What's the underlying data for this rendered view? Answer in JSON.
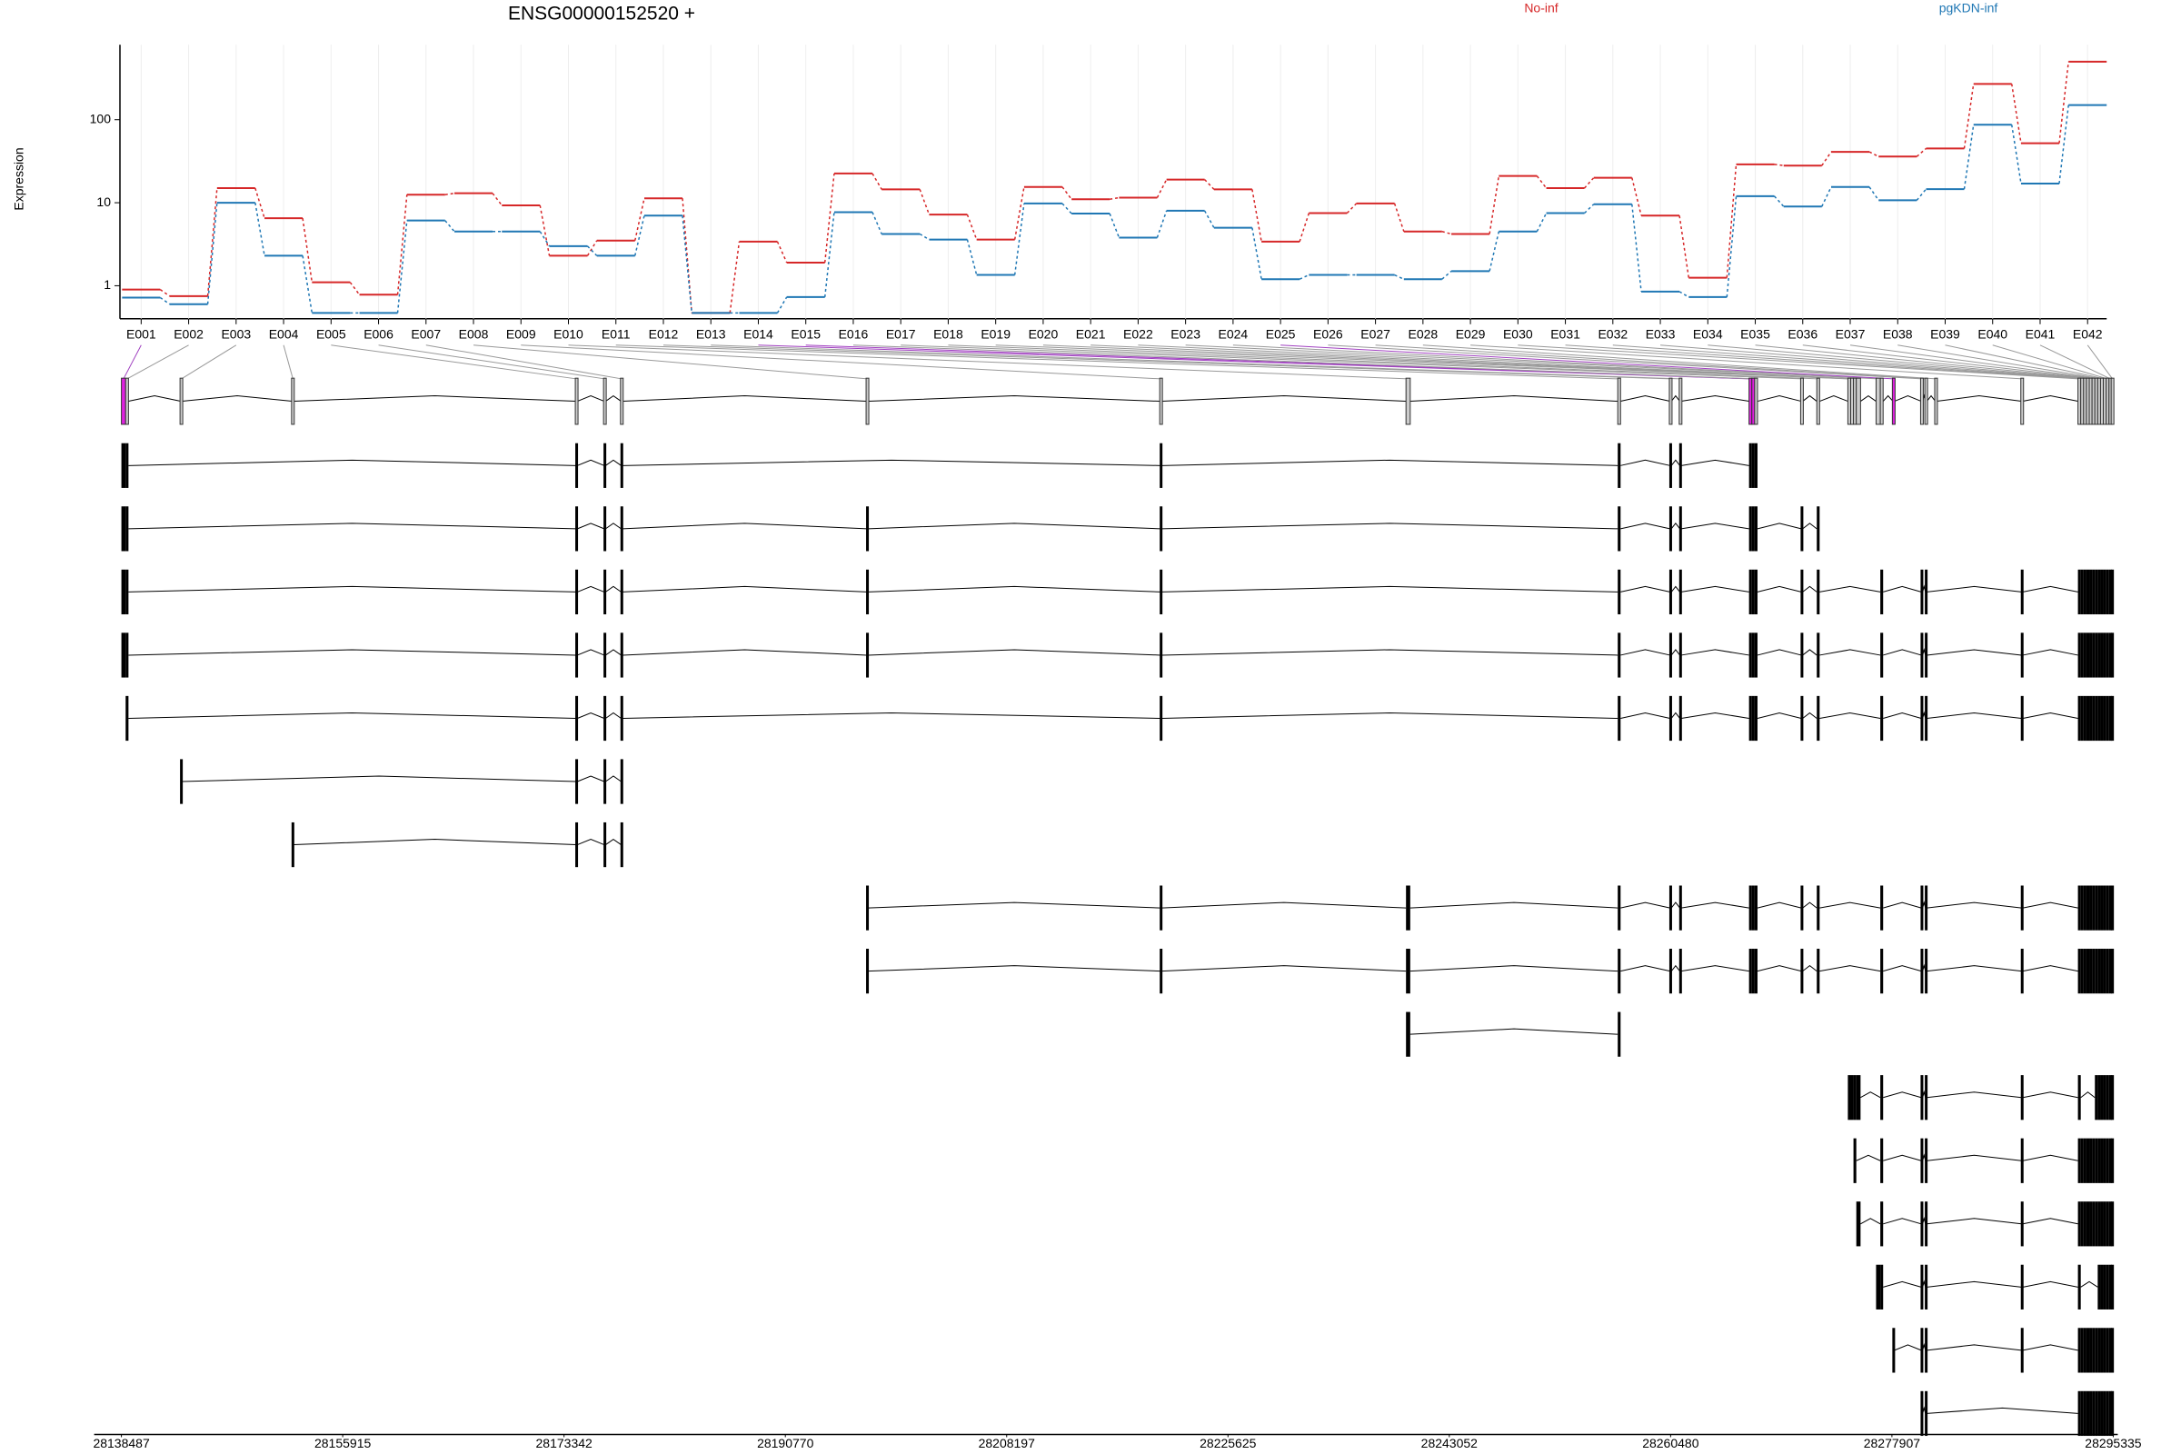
{
  "chart_data": [
    {
      "type": "line",
      "title": "ENSG00000152520 +",
      "y_label": "Expression",
      "log_y": true,
      "ylim": [
        0.4,
        800
      ],
      "yticks": [
        1,
        10,
        100
      ],
      "grid": true,
      "categories": [
        "E001",
        "E002",
        "E003",
        "E004",
        "E005",
        "E006",
        "E007",
        "E008",
        "E009",
        "E010",
        "E011",
        "E012",
        "E013",
        "E014",
        "E015",
        "E016",
        "E017",
        "E018",
        "E019",
        "E020",
        "E021",
        "E022",
        "E023",
        "E024",
        "E025",
        "E026",
        "E027",
        "E028",
        "E029",
        "E030",
        "E031",
        "E032",
        "E033",
        "E034",
        "E035",
        "E036",
        "E037",
        "E038",
        "E039",
        "E040",
        "E041",
        "E042"
      ],
      "series": [
        {
          "name": "No-inf",
          "color": "#d62728",
          "values": [
            0.9,
            0.75,
            15,
            6.5,
            1.1,
            0.78,
            12.5,
            13,
            9.3,
            2.3,
            3.5,
            11.3,
            0.47,
            3.4,
            1.9,
            22.5,
            14.5,
            7.2,
            3.6,
            15.5,
            11,
            11.5,
            19,
            14.5,
            3.4,
            7.5,
            9.8,
            4.5,
            4.2,
            21,
            15,
            20,
            7,
            1.25,
            29,
            28,
            41,
            36,
            45,
            270,
            52,
            500
          ]
        },
        {
          "name": "pgKDN-inf",
          "color": "#1f77b4",
          "values": [
            0.72,
            0.6,
            10,
            2.3,
            0.47,
            0.47,
            6.1,
            4.5,
            4.5,
            3,
            2.3,
            7,
            0.47,
            0.47,
            0.73,
            7.7,
            4.2,
            3.6,
            1.35,
            9.8,
            7.4,
            3.8,
            8,
            5,
            1.2,
            1.35,
            1.35,
            1.2,
            1.5,
            4.5,
            7.5,
            9.6,
            0.85,
            0.73,
            12,
            9,
            15.5,
            10.7,
            14.6,
            87,
            17,
            150
          ]
        }
      ]
    },
    {
      "type": "gene-model",
      "xlim": [
        28138487,
        28295335
      ],
      "xticks": [
        28138487,
        28155915,
        28173342,
        28190770,
        28208197,
        28225625,
        28243052,
        28260480,
        28277907,
        28295335
      ],
      "exon_color": "#cccccc",
      "highlight_color": "#e020e0",
      "link_color": "#999999",
      "highlight_link_color": "#a040c0",
      "exons": [
        {
          "start": 28138487,
          "end": 28138820,
          "significant": true
        },
        {
          "start": 28138820,
          "end": 28139043,
          "significant": false
        },
        {
          "start": 28143156,
          "end": 28143267,
          "significant": false
        },
        {
          "start": 28151937,
          "end": 28152049,
          "significant": false
        },
        {
          "start": 28174281,
          "end": 28174392,
          "significant": false
        },
        {
          "start": 28176504,
          "end": 28176615,
          "significant": false
        },
        {
          "start": 28177838,
          "end": 28177949,
          "significant": false
        },
        {
          "start": 28197179,
          "end": 28197291,
          "significant": false
        },
        {
          "start": 28220301,
          "end": 28220412,
          "significant": false
        },
        {
          "start": 28239643,
          "end": 28239977,
          "significant": false
        },
        {
          "start": 28256317,
          "end": 28256539,
          "significant": false
        },
        {
          "start": 28260430,
          "end": 28260541,
          "significant": false
        },
        {
          "start": 28261208,
          "end": 28261319,
          "significant": false
        },
        {
          "start": 28266655,
          "end": 28266877,
          "significant": true
        },
        {
          "start": 28266877,
          "end": 28267099,
          "significant": true
        },
        {
          "start": 28267099,
          "end": 28267322,
          "significant": false
        },
        {
          "start": 28270768,
          "end": 28270879,
          "significant": false
        },
        {
          "start": 28271991,
          "end": 28272213,
          "significant": false
        },
        {
          "start": 28274436,
          "end": 28274658,
          "significant": false
        },
        {
          "start": 28274658,
          "end": 28274880,
          "significant": false
        },
        {
          "start": 28274880,
          "end": 28275103,
          "significant": false
        },
        {
          "start": 28275103,
          "end": 28275436,
          "significant": false
        },
        {
          "start": 28276659,
          "end": 28276993,
          "significant": false
        },
        {
          "start": 28276993,
          "end": 28277215,
          "significant": false
        },
        {
          "start": 28277993,
          "end": 28278104,
          "significant": true
        },
        {
          "start": 28280216,
          "end": 28280327,
          "significant": false
        },
        {
          "start": 28280550,
          "end": 28280661,
          "significant": false
        },
        {
          "start": 28281328,
          "end": 28281439,
          "significant": false
        },
        {
          "start": 28288108,
          "end": 28288220,
          "significant": false
        },
        {
          "start": 28292555,
          "end": 28292777,
          "significant": false
        },
        {
          "start": 28292777,
          "end": 28293000,
          "significant": false
        },
        {
          "start": 28293000,
          "end": 28293222,
          "significant": false
        },
        {
          "start": 28293222,
          "end": 28293445,
          "significant": false
        },
        {
          "start": 28293445,
          "end": 28293667,
          "significant": false
        },
        {
          "start": 28293667,
          "end": 28293889,
          "significant": false
        },
        {
          "start": 28293889,
          "end": 28294112,
          "significant": false
        },
        {
          "start": 28294112,
          "end": 28294334,
          "significant": false
        },
        {
          "start": 28294334,
          "end": 28294556,
          "significant": false
        },
        {
          "start": 28294556,
          "end": 28294779,
          "significant": false
        },
        {
          "start": 28294779,
          "end": 28295001,
          "significant": false
        },
        {
          "start": 28295001,
          "end": 28295223,
          "significant": false
        },
        {
          "start": 28295223,
          "end": 28295335,
          "significant": false
        }
      ],
      "transcripts": [
        [
          0,
          1,
          4,
          5,
          6,
          8,
          10,
          11,
          12,
          13,
          14,
          15
        ],
        [
          0,
          1,
          4,
          5,
          6,
          7,
          8,
          10,
          11,
          12,
          13,
          14,
          15,
          16,
          17
        ],
        [
          0,
          1,
          4,
          5,
          6,
          7,
          8,
          10,
          11,
          12,
          13,
          14,
          15,
          16,
          17,
          23,
          25,
          26,
          28,
          29,
          30,
          31,
          32,
          33,
          34,
          35,
          36,
          37,
          38,
          39,
          40,
          41
        ],
        [
          0,
          1,
          4,
          5,
          6,
          7,
          8,
          10,
          11,
          12,
          13,
          14,
          15,
          16,
          17,
          23,
          25,
          26,
          28,
          29,
          30,
          31,
          32,
          33,
          34,
          35,
          36,
          37,
          38,
          39,
          40,
          41
        ],
        [
          1,
          4,
          5,
          6,
          8,
          10,
          11,
          12,
          13,
          14,
          15,
          16,
          17,
          23,
          25,
          26,
          28,
          29,
          30,
          31,
          32,
          33,
          34,
          35,
          36,
          37,
          38,
          39,
          40,
          41
        ],
        [
          2,
          4,
          5,
          6
        ],
        [
          3,
          4,
          5,
          6
        ],
        [
          7,
          8,
          9,
          10,
          11,
          12,
          13,
          14,
          15,
          16,
          17,
          23,
          25,
          26,
          28,
          29,
          30,
          31,
          32,
          33,
          34,
          35,
          36,
          37,
          38,
          39,
          40,
          41
        ],
        [
          7,
          8,
          9,
          10,
          11,
          12,
          13,
          14,
          15,
          16,
          17,
          23,
          25,
          26,
          28,
          29,
          30,
          31,
          32,
          33,
          34,
          35,
          36,
          37,
          38,
          39,
          40,
          41
        ],
        [
          9,
          10
        ],
        [
          18,
          19,
          20,
          21,
          23,
          25,
          26,
          28,
          29,
          35,
          36,
          37,
          38,
          39,
          40,
          41
        ],
        [
          20,
          23,
          25,
          26,
          28,
          29,
          30,
          31,
          32,
          33,
          34,
          35,
          36,
          37,
          38,
          39,
          40,
          41
        ],
        [
          21,
          23,
          25,
          26,
          28,
          29,
          30,
          31,
          32,
          33,
          34,
          35,
          36,
          37,
          38,
          39,
          40,
          41
        ],
        [
          22,
          23,
          25,
          26,
          28,
          29,
          36,
          37,
          38,
          39,
          40,
          41
        ],
        [
          24,
          25,
          26,
          28,
          29,
          30,
          31,
          32,
          33,
          34,
          35,
          36,
          37,
          38,
          39,
          40,
          41
        ],
        [
          25,
          26,
          29,
          30,
          31,
          32,
          33,
          34,
          35,
          36,
          37,
          38,
          39,
          40,
          41
        ]
      ]
    }
  ]
}
